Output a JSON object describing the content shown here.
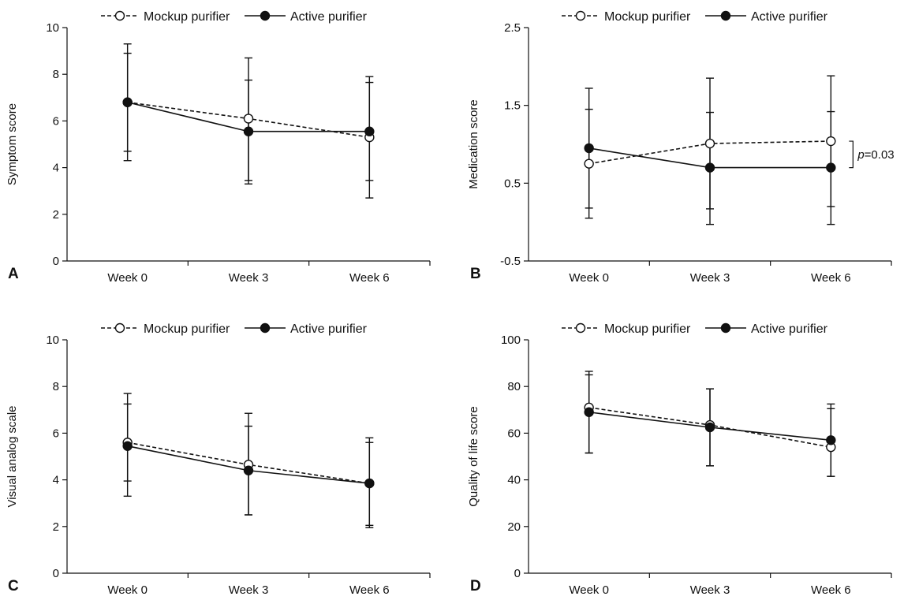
{
  "legend": {
    "mockup_label": "Mockup purifier",
    "active_label": "Active purifier"
  },
  "chart_data": [
    {
      "panel": "A",
      "type": "line",
      "title": "",
      "xlabel": "",
      "ylabel": "Symptom score",
      "categories": [
        "Week 0",
        "Week 3",
        "Week 6"
      ],
      "ylim": [
        0,
        10
      ],
      "yticks": [
        "0",
        "2",
        "4",
        "6",
        "8",
        "10"
      ],
      "series": [
        {
          "name": "Mockup purifier",
          "style": "dashed-open",
          "values": [
            6.8,
            6.1,
            5.3
          ],
          "lower": [
            4.3,
            3.3,
            2.7
          ],
          "upper": [
            9.3,
            8.7,
            7.9
          ]
        },
        {
          "name": "Active purifier",
          "style": "solid-filled",
          "values": [
            6.8,
            5.55,
            5.55
          ],
          "lower": [
            4.7,
            3.45,
            3.45
          ],
          "upper": [
            8.9,
            7.75,
            7.65
          ]
        }
      ],
      "annotation": null
    },
    {
      "panel": "B",
      "type": "line",
      "title": "",
      "xlabel": "",
      "ylabel": "Medication score",
      "categories": [
        "Week 0",
        "Week 3",
        "Week 6"
      ],
      "ylim": [
        -0.5,
        2.5
      ],
      "yticks": [
        "-0.5",
        "0.5",
        "1.5",
        "2.5"
      ],
      "series": [
        {
          "name": "Mockup purifier",
          "style": "dashed-open",
          "values": [
            0.75,
            1.01,
            1.04
          ],
          "lower": [
            0.18,
            0.17,
            0.2
          ],
          "upper": [
            1.45,
            1.41,
            1.42
          ]
        },
        {
          "name": "Active purifier",
          "style": "solid-filled",
          "values": [
            0.95,
            0.7,
            0.7
          ],
          "lower": [
            0.05,
            -0.03,
            -0.03
          ],
          "upper": [
            1.72,
            1.85,
            1.88
          ]
        }
      ],
      "annotation": {
        "italic": "p",
        "text": "=0.03"
      }
    },
    {
      "panel": "C",
      "type": "line",
      "title": "",
      "xlabel": "",
      "ylabel": "Visual analog scale",
      "categories": [
        "Week 0",
        "Week 3",
        "Week 6"
      ],
      "ylim": [
        0,
        10
      ],
      "yticks": [
        "0",
        "2",
        "4",
        "6",
        "8",
        "10"
      ],
      "series": [
        {
          "name": "Mockup purifier",
          "style": "dashed-open",
          "values": [
            5.6,
            4.65,
            3.85
          ],
          "lower": [
            3.3,
            2.5,
            1.95
          ],
          "upper": [
            7.7,
            6.85,
            5.8
          ]
        },
        {
          "name": "Active purifier",
          "style": "solid-filled",
          "values": [
            5.45,
            4.4,
            3.85
          ],
          "lower": [
            3.95,
            2.5,
            2.05
          ],
          "upper": [
            7.25,
            6.3,
            5.6
          ]
        }
      ],
      "annotation": null
    },
    {
      "panel": "D",
      "type": "line",
      "title": "",
      "xlabel": "",
      "ylabel": "Quality of life score",
      "categories": [
        "Week 0",
        "Week 3",
        "Week 6"
      ],
      "ylim": [
        0,
        100
      ],
      "yticks": [
        "0",
        "20",
        "40",
        "60",
        "80",
        "100"
      ],
      "series": [
        {
          "name": "Mockup purifier",
          "style": "dashed-open",
          "values": [
            71,
            63.5,
            54
          ],
          "lower": [
            51.5,
            46,
            41.5
          ],
          "upper": [
            86.5,
            79,
            72.5
          ]
        },
        {
          "name": "Active purifier",
          "style": "solid-filled",
          "values": [
            69,
            62.5,
            57
          ],
          "lower": [
            51.5,
            46,
            41.5
          ],
          "upper": [
            85,
            79,
            70.5
          ]
        }
      ],
      "annotation": null
    }
  ]
}
